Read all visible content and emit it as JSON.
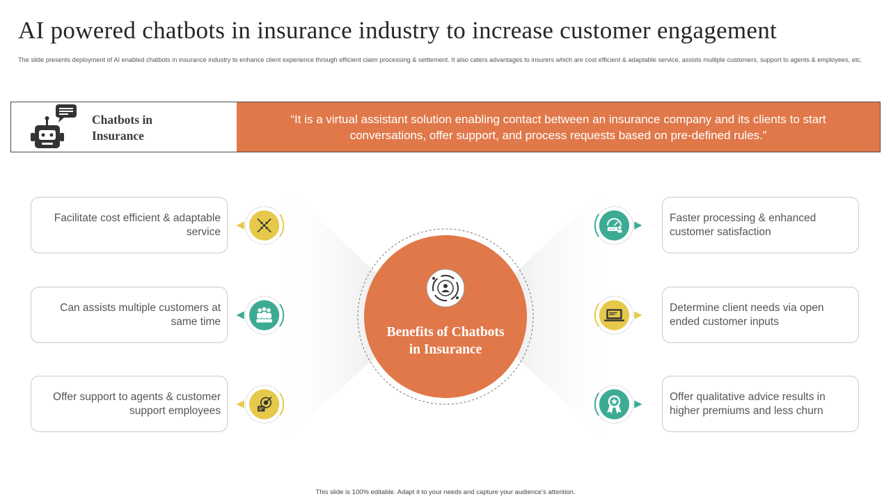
{
  "title": "AI powered chatbots in insurance industry to increase customer engagement",
  "subtitle": "The slide presents deployment of AI enabled chatbots in insurance industry to enhance client experience through efficient claim processing & settlement. It also caters advantages to insurers which are cost efficient & adaptable service, assists multiple customers, support to agents & employees, etc.",
  "banner": {
    "label_line1": "Chatbots in",
    "label_line2": "Insurance",
    "quote": "“It is a virtual assistant solution enabling contact between an insurance company and its clients to start conversations, offer support, and process requests based on pre-defined rules.”",
    "icon": "robot-chat-icon"
  },
  "center": {
    "line1": "Benefits of Chatbots",
    "line2": "in Insurance",
    "icon": "target-people-icon"
  },
  "benefits_left": [
    {
      "text": "Facilitate cost efficient & adaptable service",
      "icon": "arrows-converge-icon",
      "color": "#e6c84a"
    },
    {
      "text": "Can assists multiple customers at same time",
      "icon": "group-people-icon",
      "color": "#3dab94"
    },
    {
      "text": "Offer support to agents & customer support employees",
      "icon": "target-card-icon",
      "color": "#e6c84a"
    }
  ],
  "benefits_right": [
    {
      "text": "Faster processing & enhanced customer satisfaction",
      "icon": "speed-gauge-icon",
      "color": "#3dab94"
    },
    {
      "text": "Determine client needs via open ended customer inputs",
      "icon": "laptop-icon",
      "color": "#e6c84a"
    },
    {
      "text": "Offer qualitative advice results in higher premiums and less churn",
      "icon": "award-badge-icon",
      "color": "#3dab94"
    }
  ],
  "colors": {
    "accent": "#e0784a",
    "teal": "#3dab94",
    "yellow": "#e6c84a"
  },
  "footer": "This slide is 100% editable. Adapt it to your needs and capture your audience’s attention."
}
